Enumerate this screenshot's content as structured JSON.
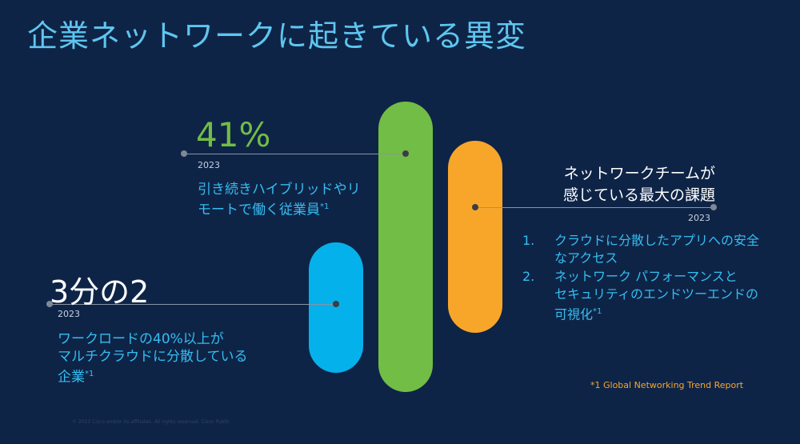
{
  "slide": {
    "title": "企業ネットワークに起きている異変",
    "colors": {
      "background": "#0e2447",
      "title": "#5ec6ef",
      "green": "#72bd45",
      "orange": "#f8a62a",
      "blue": "#05b1ea",
      "text_blue": "#35bdf0"
    },
    "stat_hybrid": {
      "value": "41%",
      "year": "2023",
      "desc_line1": "引き続きハイブリッドやリ",
      "desc_line2": "モートで働く従業員",
      "note": "*1"
    },
    "stat_multicloud": {
      "value": "3分の2",
      "year": "2023",
      "desc_line1": "ワークロードの40%以上が",
      "desc_line2": "マルチクラウドに分散している",
      "desc_line3": "企業",
      "note": "*1"
    },
    "challenges": {
      "title_line1": "ネットワークチームが",
      "title_line2": "感じている最大の課題",
      "year": "2023",
      "items": [
        {
          "num": "1.",
          "line1": "クラウドに分散したアプリへの安全",
          "line2": "なアクセス",
          "line3": "",
          "note": ""
        },
        {
          "num": "2.",
          "line1": "ネットワーク パフォーマンスと",
          "line2": "セキュリティのエンドツーエンドの",
          "line3": "可視化",
          "note": "*1"
        }
      ]
    },
    "footnote": "*1 Global Networking Trend Report",
    "copyright": "© 2023 Cisco and/or its affiliates. All rights reserved.   Cisco Public"
  }
}
